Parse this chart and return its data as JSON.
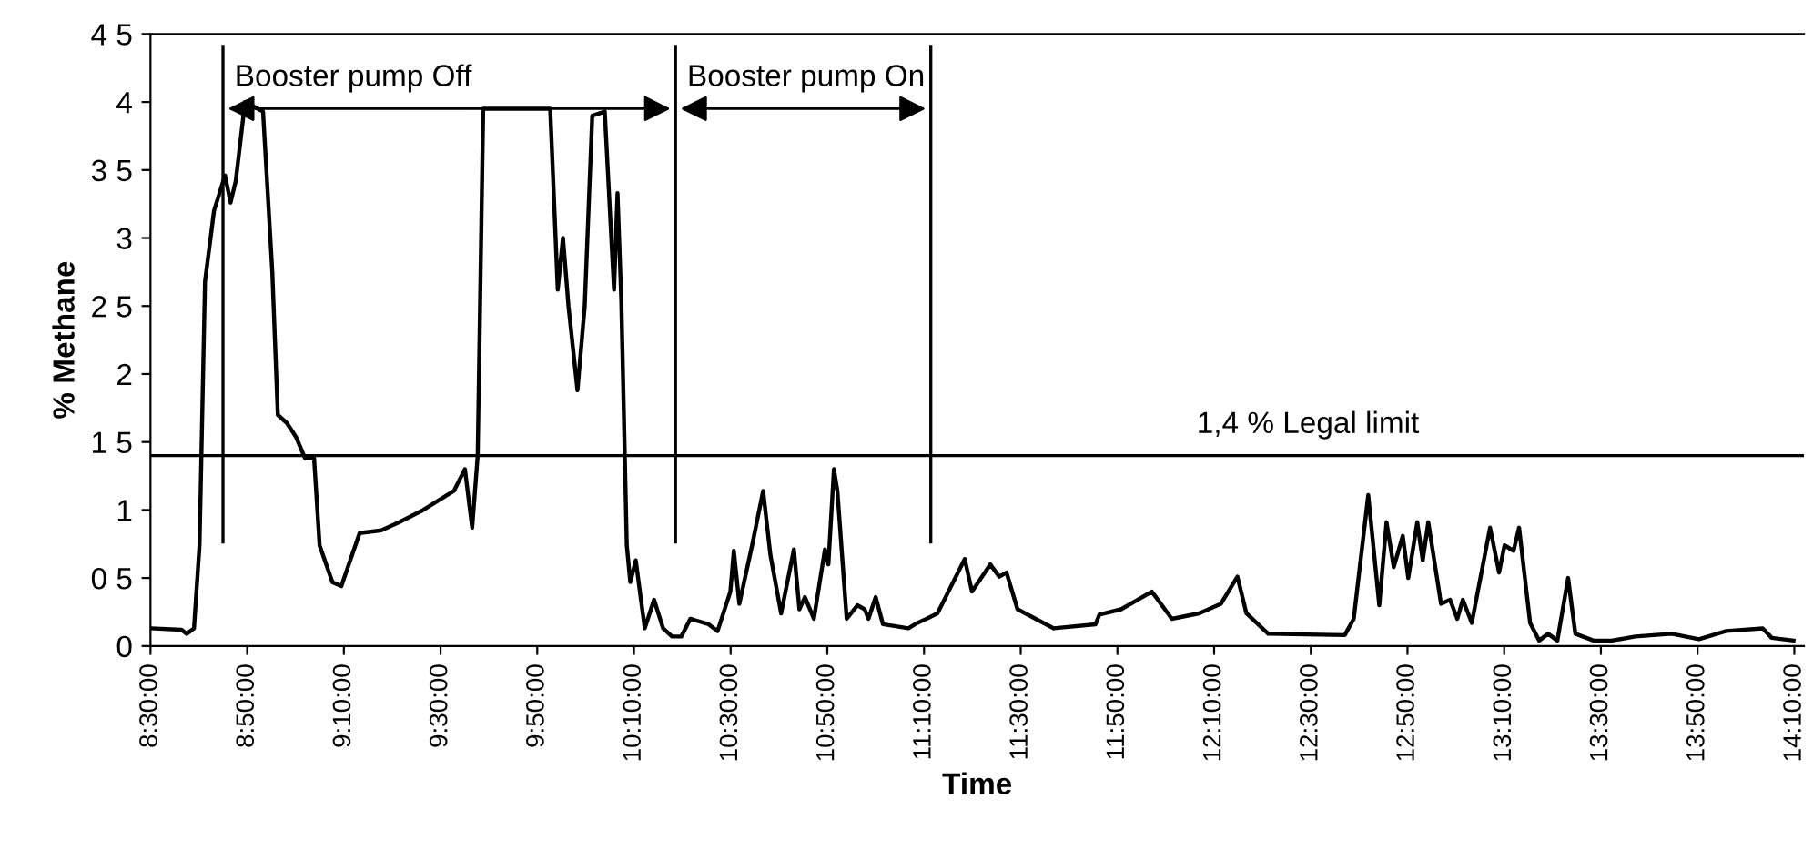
{
  "chart_data": {
    "type": "line",
    "xlabel": "Time",
    "ylabel": "% Methane",
    "x": [
      8.5,
      8.607,
      8.625,
      8.65,
      8.669,
      8.688,
      8.719,
      8.757,
      8.776,
      8.794,
      8.826,
      8.888,
      8.92,
      8.939,
      8.97,
      9.001,
      9.033,
      9.064,
      9.083,
      9.127,
      9.158,
      9.221,
      9.296,
      9.358,
      9.44,
      9.546,
      9.584,
      9.609,
      9.628,
      9.647,
      9.878,
      9.904,
      9.922,
      9.941,
      9.972,
      9.997,
      10.023,
      10.066,
      10.098,
      10.11,
      10.123,
      10.142,
      10.154,
      10.173,
      10.204,
      10.236,
      10.267,
      10.298,
      10.33,
      10.361,
      10.424,
      10.455,
      10.499,
      10.511,
      10.53,
      10.574,
      10.612,
      10.637,
      10.674,
      10.718,
      10.737,
      10.756,
      10.787,
      10.825,
      10.837,
      10.856,
      10.868,
      10.9,
      10.937,
      10.962,
      10.975,
      11.0,
      11.025,
      11.113,
      11.144,
      11.175,
      11.213,
      11.307,
      11.332,
      11.395,
      11.426,
      11.451,
      11.489,
      11.614,
      11.758,
      11.771,
      11.846,
      11.952,
      12.021,
      12.115,
      12.19,
      12.247,
      12.278,
      12.353,
      12.617,
      12.648,
      12.698,
      12.736,
      12.761,
      12.786,
      12.817,
      12.836,
      12.867,
      12.886,
      12.905,
      12.949,
      12.98,
      13.005,
      13.024,
      13.055,
      13.118,
      13.149,
      13.168,
      13.199,
      13.218,
      13.256,
      13.287,
      13.318,
      13.35,
      13.387,
      13.412,
      13.475,
      13.538,
      13.619,
      13.744,
      13.838,
      13.932,
      14.058,
      14.089,
      14.164
    ],
    "values": [
      0.13,
      0.12,
      0.09,
      0.13,
      0.74,
      2.68,
      3.2,
      3.46,
      3.26,
      3.42,
      4.0,
      3.93,
      2.75,
      1.7,
      1.64,
      1.54,
      1.38,
      1.38,
      0.74,
      0.47,
      0.44,
      0.83,
      0.85,
      0.91,
      1.0,
      1.14,
      1.3,
      0.87,
      1.4,
      3.95,
      3.95,
      2.62,
      3.0,
      2.5,
      1.88,
      2.5,
      3.9,
      3.93,
      2.62,
      3.33,
      2.55,
      0.74,
      0.47,
      0.63,
      0.13,
      0.34,
      0.13,
      0.07,
      0.07,
      0.2,
      0.16,
      0.11,
      0.4,
      0.7,
      0.31,
      0.74,
      1.14,
      0.67,
      0.24,
      0.71,
      0.27,
      0.36,
      0.2,
      0.71,
      0.6,
      1.3,
      1.14,
      0.2,
      0.3,
      0.27,
      0.2,
      0.36,
      0.16,
      0.13,
      0.17,
      0.2,
      0.24,
      0.64,
      0.4,
      0.6,
      0.51,
      0.54,
      0.27,
      0.13,
      0.16,
      0.23,
      0.27,
      0.4,
      0.2,
      0.24,
      0.31,
      0.51,
      0.24,
      0.09,
      0.08,
      0.2,
      1.11,
      0.3,
      0.91,
      0.58,
      0.81,
      0.5,
      0.91,
      0.63,
      0.91,
      0.31,
      0.34,
      0.2,
      0.34,
      0.17,
      0.87,
      0.54,
      0.74,
      0.7,
      0.87,
      0.17,
      0.04,
      0.09,
      0.04,
      0.5,
      0.09,
      0.04,
      0.04,
      0.07,
      0.09,
      0.05,
      0.11,
      0.13,
      0.06,
      0.04
    ],
    "color": "#000000",
    "xlim": [
      8.5,
      14.2
    ],
    "xticks": [
      {
        "value": 8.5,
        "label": "8:30:00"
      },
      {
        "value": 8.8333,
        "label": "8:50:00"
      },
      {
        "value": 9.1667,
        "label": "9:10:00"
      },
      {
        "value": 9.5,
        "label": "9:30:00"
      },
      {
        "value": 9.8333,
        "label": "9:50:00"
      },
      {
        "value": 10.1667,
        "label": "10:10:00"
      },
      {
        "value": 10.5,
        "label": "10:30:00"
      },
      {
        "value": 10.8333,
        "label": "10:50:00"
      },
      {
        "value": 11.1667,
        "label": "11:10:00"
      },
      {
        "value": 11.5,
        "label": "11:30:00"
      },
      {
        "value": 11.8333,
        "label": "11:50:00"
      },
      {
        "value": 12.1667,
        "label": "12:10:00"
      },
      {
        "value": 12.5,
        "label": "12:30:00"
      },
      {
        "value": 12.8333,
        "label": "12:50:00"
      },
      {
        "value": 13.1667,
        "label": "13:10:00"
      },
      {
        "value": 13.5,
        "label": "13:30:00"
      },
      {
        "value": 13.8333,
        "label": "13:50:00"
      },
      {
        "value": 14.1667,
        "label": "14:10:00"
      }
    ],
    "ylim": [
      0,
      4.5
    ],
    "yticks": [
      0,
      {
        "value": 0.5,
        "label": "0 5"
      },
      1,
      {
        "value": 1.5,
        "label": "1 5"
      },
      2,
      {
        "value": 2.5,
        "label": "2 5"
      },
      3,
      {
        "value": 3.5,
        "label": "3 5"
      },
      4,
      {
        "value": 4.5,
        "label": "4 5"
      }
    ],
    "ref_lines": [
      {
        "axis": "y",
        "value": 1.4,
        "label": "1,4 % Legal limit",
        "color": "#000000"
      },
      {
        "axis": "x",
        "value": 8.75,
        "color": "#000000"
      },
      {
        "axis": "x",
        "value": 10.31,
        "color": "#000000"
      },
      {
        "axis": "x",
        "value": 11.19,
        "color": "#000000"
      }
    ],
    "annotations": [
      "Booster pump Off",
      "Booster pump On"
    ],
    "grid": false,
    "legend": false,
    "marker": "none",
    "line_style": "solid"
  }
}
